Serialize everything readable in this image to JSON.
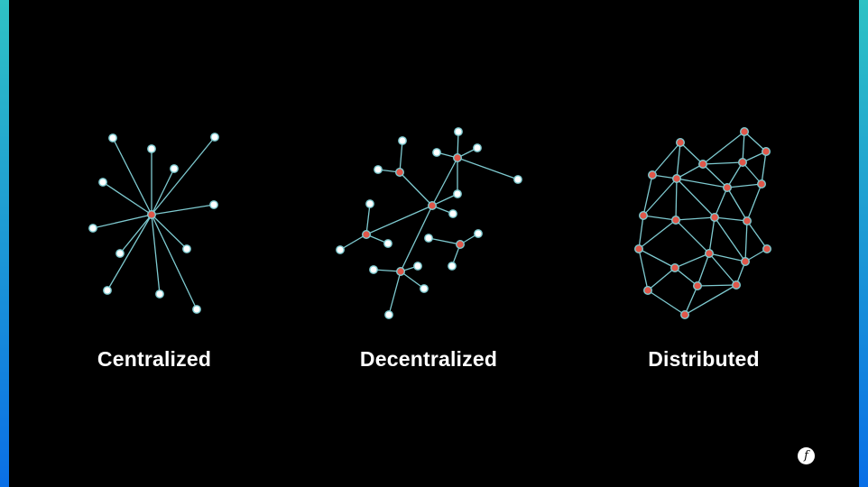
{
  "diagrams": [
    {
      "label": "Centralized"
    },
    {
      "label": "Decentralized"
    },
    {
      "label": "Distributed"
    }
  ],
  "logo": {
    "glyph": "f"
  },
  "colors": {
    "edge": "#7ecad0",
    "hub_node": "#e0574a",
    "leaf_node": "#ffffff",
    "background": "#000000",
    "frame_top": "#2fc2c4",
    "frame_bottom": "#0a6fe6"
  }
}
